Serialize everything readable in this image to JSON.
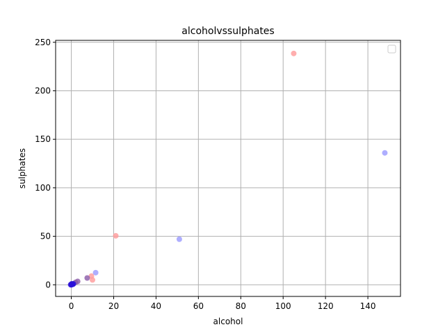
{
  "chart_data": {
    "type": "scatter",
    "title": "alcoholvssulphates",
    "xlabel": "alcohol",
    "ylabel": "sulphates",
    "xlim": [
      -7.4,
      155.4
    ],
    "ylim": [
      -12,
      252
    ],
    "xticks": [
      0,
      20,
      40,
      60,
      80,
      100,
      120,
      140
    ],
    "yticks": [
      0,
      50,
      100,
      150,
      200,
      250
    ],
    "grid": true,
    "legend": {
      "placement": "top-right",
      "entries": []
    },
    "series": [
      {
        "color": "#ff9a9a",
        "points": [
          [
            105,
            238.5
          ],
          [
            21,
            50.5
          ],
          [
            9.5,
            9
          ],
          [
            10,
            5
          ],
          [
            0,
            0.5
          ],
          [
            0.3,
            0.8
          ]
        ]
      },
      {
        "color": "#9a9aff",
        "points": [
          [
            148,
            136
          ],
          [
            51,
            47
          ],
          [
            11.5,
            12.5
          ],
          [
            0.2,
            0.3
          ],
          [
            0.5,
            0.6
          ],
          [
            1.0,
            1.2
          ]
        ]
      },
      {
        "color": "#8a5aa8",
        "points": [
          [
            7.5,
            7
          ],
          [
            3,
            3.5
          ],
          [
            2,
            2.5
          ]
        ]
      },
      {
        "color": "#2a10d8",
        "points": [
          [
            0,
            0
          ],
          [
            0.4,
            0.4
          ],
          [
            0.7,
            0.5
          ],
          [
            1.0,
            0.9
          ],
          [
            -0.3,
            0.1
          ],
          [
            0.2,
            1.0
          ]
        ]
      }
    ]
  }
}
